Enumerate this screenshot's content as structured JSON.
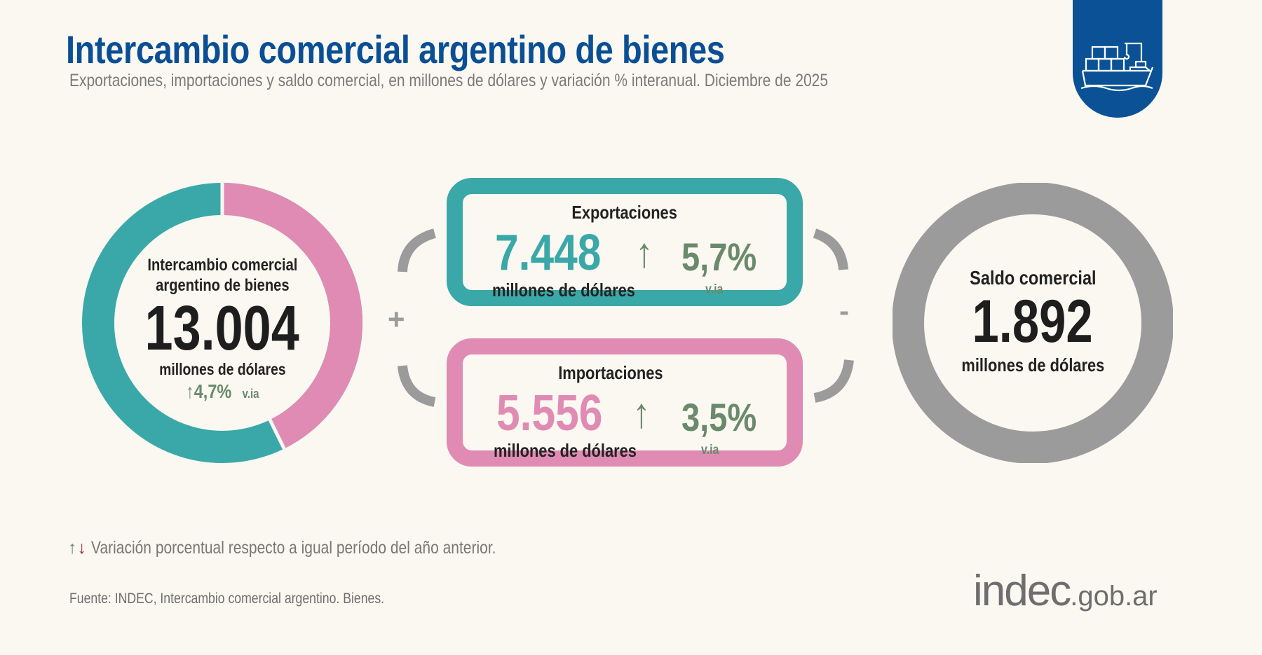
{
  "header": {
    "title": "Intercambio comercial argentino de bienes",
    "subtitle": "Exportaciones, importaciones y saldo comercial, en millones de dólares y variación % interanual. Diciembre de 2025",
    "badge_icon": "cargo-ship-icon"
  },
  "total": {
    "label_line1": "Intercambio comercial",
    "label_line2": "argentino de bienes",
    "value": "13.004",
    "unit": "millones de dólares",
    "variation": "4,7%",
    "variation_direction": "up",
    "variation_suffix": "v.ia"
  },
  "exports": {
    "label": "Exportaciones",
    "value": "7.448",
    "unit": "millones de dólares",
    "variation": "5,7%",
    "variation_direction": "up",
    "variation_suffix": "v.ia"
  },
  "imports": {
    "label": "Importaciones",
    "value": "5.556",
    "unit": "millones de dólares",
    "variation": "3,5%",
    "variation_direction": "up",
    "variation_suffix": "v.ia"
  },
  "balance": {
    "label": "Saldo comercial",
    "value": "1.892",
    "unit": "millones de dólares"
  },
  "operators": {
    "plus": "+",
    "minus": "-"
  },
  "legend": {
    "text": "Variación porcentual respecto a igual período del año anterior."
  },
  "source": "Fuente: INDEC, Intercambio comercial argentino. Bienes.",
  "logo": {
    "main": "indec",
    "suffix": ".gob.ar"
  },
  "colors": {
    "title": "#0a4f95",
    "exports": "#3aa8a8",
    "imports": "#e08bb3",
    "balance": "#9b9b9b",
    "up": "#6a8a6b",
    "down": "#a3353f",
    "background": "#faf8f1"
  }
}
